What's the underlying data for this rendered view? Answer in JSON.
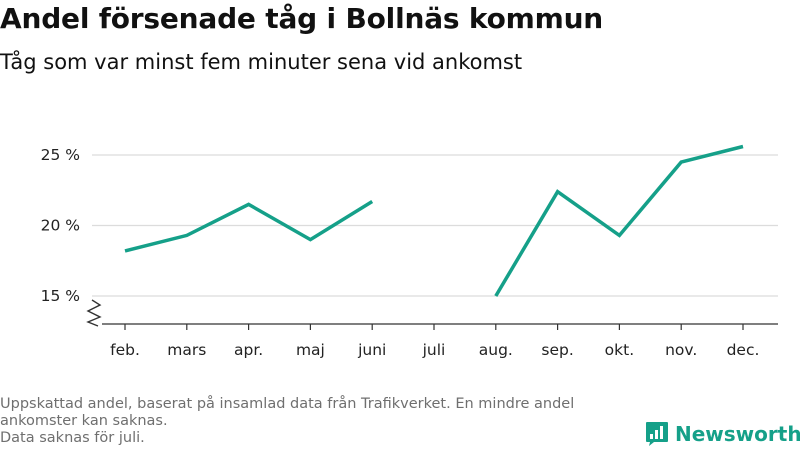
{
  "title": "Andel försenade tåg i Bollnäs kommun",
  "subtitle": "Tåg som var minst fem minuter sena vid ankomst",
  "footer": {
    "line1": "Uppskattad andel, baserat på insamlad data från Trafikverket. En mindre andel",
    "line2": "ankomster kan saknas.",
    "line3": "Data saknas för juli."
  },
  "brand": {
    "name": "Newsworthy",
    "icon": "newsworthy-logo-icon",
    "color": "#15a089"
  },
  "chart_data": {
    "type": "line",
    "title": "Andel försenade tåg i Bollnäs kommun",
    "subtitle": "Tåg som var minst fem minuter sena vid ankomst",
    "categories": [
      "feb.",
      "mars",
      "apr.",
      "maj",
      "juni",
      "juli",
      "aug.",
      "sep.",
      "okt.",
      "nov.",
      "dec."
    ],
    "series": [
      {
        "values": [
          18.2,
          19.3,
          21.5,
          19.0,
          21.7,
          null,
          15.0,
          22.4,
          19.3,
          24.5,
          25.6
        ],
        "color": "#15a089"
      }
    ],
    "y_ticks": [
      15,
      20,
      25
    ],
    "y_tick_labels": [
      "15 %",
      "20 %",
      "25 %"
    ],
    "ylim": [
      13,
      27
    ],
    "y_axis_break": true,
    "grid": "horizontal",
    "xlabel": "",
    "ylabel": ""
  }
}
